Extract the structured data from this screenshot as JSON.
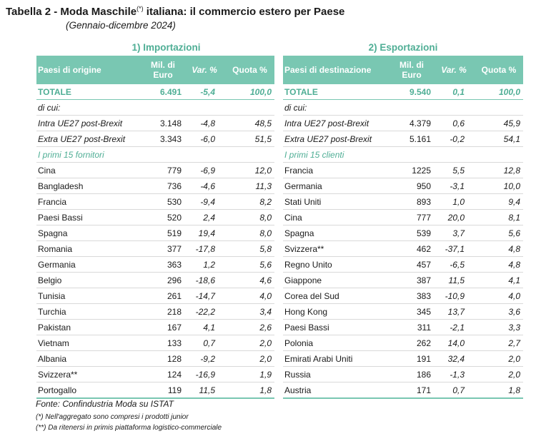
{
  "title": {
    "main": "Tabella 2 - Moda Maschile",
    "sup": "(*)",
    "rest": " italiana: il commercio estero per Paese",
    "subtitle": "(Gennaio-dicembre 2024)"
  },
  "imports": {
    "section_title": "1) Importazioni",
    "headers": {
      "name": "Paesi di origine",
      "value": "Mil. di Euro",
      "var": "Var. %",
      "share": "Quota %"
    },
    "total": {
      "name": "TOTALE",
      "value": "6.491",
      "var": "-5,4",
      "share": "100,0"
    },
    "dicui": "di cui:",
    "aggregates": [
      {
        "name": "Intra UE27 post-Brexit",
        "value": "3.148",
        "var": "-4,8",
        "share": "48,5"
      },
      {
        "name": "Extra UE27 post-Brexit",
        "value": "3.343",
        "var": "-6,0",
        "share": "51,5"
      }
    ],
    "top_label": "I primi 15 fornitori",
    "rows": [
      {
        "name": "Cina",
        "value": "779",
        "var": "-6,9",
        "share": "12,0"
      },
      {
        "name": "Bangladesh",
        "value": "736",
        "var": "-4,6",
        "share": "11,3"
      },
      {
        "name": "Francia",
        "value": "530",
        "var": "-9,4",
        "share": "8,2"
      },
      {
        "name": "Paesi Bassi",
        "value": "520",
        "var": "2,4",
        "share": "8,0"
      },
      {
        "name": "Spagna",
        "value": "519",
        "var": "19,4",
        "share": "8,0"
      },
      {
        "name": "Romania",
        "value": "377",
        "var": "-17,8",
        "share": "5,8"
      },
      {
        "name": "Germania",
        "value": "363",
        "var": "1,2",
        "share": "5,6"
      },
      {
        "name": "Belgio",
        "value": "296",
        "var": "-18,6",
        "share": "4,6"
      },
      {
        "name": "Tunisia",
        "value": "261",
        "var": "-14,7",
        "share": "4,0"
      },
      {
        "name": "Turchia",
        "value": "218",
        "var": "-22,2",
        "share": "3,4"
      },
      {
        "name": "Pakistan",
        "value": "167",
        "var": "4,1",
        "share": "2,6"
      },
      {
        "name": "Vietnam",
        "value": "133",
        "var": "0,7",
        "share": "2,0"
      },
      {
        "name": "Albania",
        "value": "128",
        "var": "-9,2",
        "share": "2,0"
      },
      {
        "name": "Svizzera**",
        "value": "124",
        "var": "-16,9",
        "share": "1,9"
      },
      {
        "name": "Portogallo",
        "value": "119",
        "var": "11,5",
        "share": "1,8"
      }
    ]
  },
  "exports": {
    "section_title": "2) Esportazioni",
    "headers": {
      "name": "Paesi di destinazione",
      "value": "Mil. di Euro",
      "var": "Var. %",
      "share": "Quota %"
    },
    "total": {
      "name": "TOTALE",
      "value": "9.540",
      "var": "0,1",
      "share": "100,0"
    },
    "dicui": "di cui:",
    "aggregates": [
      {
        "name": "Intra UE27 post-Brexit",
        "value": "4.379",
        "var": "0,6",
        "share": "45,9"
      },
      {
        "name": "Extra UE27 post-Brexit",
        "value": "5.161",
        "var": "-0,2",
        "share": "54,1"
      }
    ],
    "top_label": "I primi 15 clienti",
    "rows": [
      {
        "name": "Francia",
        "value": "1225",
        "var": "5,5",
        "share": "12,8"
      },
      {
        "name": "Germania",
        "value": "950",
        "var": "-3,1",
        "share": "10,0"
      },
      {
        "name": "Stati Uniti",
        "value": "893",
        "var": "1,0",
        "share": "9,4"
      },
      {
        "name": "Cina",
        "value": "777",
        "var": "20,0",
        "share": "8,1"
      },
      {
        "name": "Spagna",
        "value": "539",
        "var": "3,7",
        "share": "5,6"
      },
      {
        "name": "Svizzera**",
        "value": "462",
        "var": "-37,1",
        "share": "4,8"
      },
      {
        "name": "Regno Unito",
        "value": "457",
        "var": "-6,5",
        "share": "4,8"
      },
      {
        "name": "Giappone",
        "value": "387",
        "var": "11,5",
        "share": "4,1"
      },
      {
        "name": "Corea del Sud",
        "value": "383",
        "var": "-10,9",
        "share": "4,0"
      },
      {
        "name": "Hong Kong",
        "value": "345",
        "var": "13,7",
        "share": "3,6"
      },
      {
        "name": "Paesi Bassi",
        "value": "311",
        "var": "-2,1",
        "share": "3,3"
      },
      {
        "name": "Polonia",
        "value": "262",
        "var": "14,0",
        "share": "2,7"
      },
      {
        "name": "Emirati Arabi Uniti",
        "value": "191",
        "var": "32,4",
        "share": "2,0"
      },
      {
        "name": "Russia",
        "value": "186",
        "var": "-1,3",
        "share": "2,0"
      },
      {
        "name": "Austria",
        "value": "171",
        "var": "0,7",
        "share": "1,8"
      }
    ]
  },
  "footer": {
    "source": "Fonte:  Confindustria Moda su ISTAT",
    "note1": "(*) Nell'aggregato sono compresi i prodotti junior",
    "note2": "(**) Da ritenersi in primis piattaforma logistico-commerciale"
  }
}
